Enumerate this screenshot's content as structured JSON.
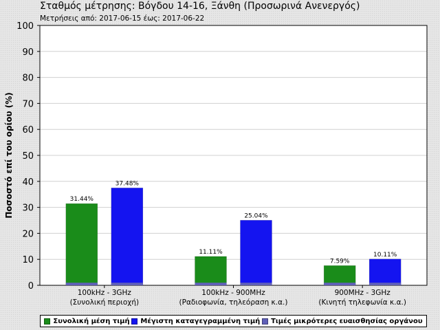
{
  "title": "Σταθμός μέτρησης: Βόγδου 14-16, Ξάνθη (Προσωρινά Ανενεργός)",
  "subtitle": "Μετρήσεις από: 2017-06-15 έως: 2017-06-22",
  "chart_data": {
    "type": "bar",
    "ylabel": "Ποσοστό επί του ορίου (%)",
    "xlabel": "",
    "ylim": [
      0,
      100
    ],
    "yticks": [
      0,
      10,
      20,
      30,
      40,
      50,
      60,
      70,
      80,
      90,
      100
    ],
    "grid": true,
    "legend_position": "bottom",
    "categories": [
      {
        "line1": "100kHz - 3GHz",
        "line2": "(Συνολική περιοχή)"
      },
      {
        "line1": "100kHz - 900MHz",
        "line2": "(Ραδιοφωνία, τηλεόραση κ.α.)"
      },
      {
        "line1": "900MHz - 3GHz",
        "line2": "(Κινητή τηλεφωνία κ.α.)"
      }
    ],
    "series": [
      {
        "name": "Συνολική μέση τιμή",
        "color": "#1a8c1a",
        "values": [
          31.44,
          11.11,
          7.59
        ],
        "labels": [
          "31.44%",
          "11.11%",
          "7.59%"
        ]
      },
      {
        "name": "Μέγιστη καταγεγραμμένη τιμή",
        "color": "#1414f0",
        "values": [
          37.48,
          25.04,
          10.11
        ],
        "labels": [
          "37.48%",
          "25.04%",
          "10.11%"
        ]
      }
    ],
    "sensitivity_series": {
      "name": "Τιμές μικρότερες ευαισθησίας οργάνου",
      "color": "#6060b8",
      "values": [
        1,
        1,
        1,
        1,
        1,
        1
      ]
    }
  }
}
